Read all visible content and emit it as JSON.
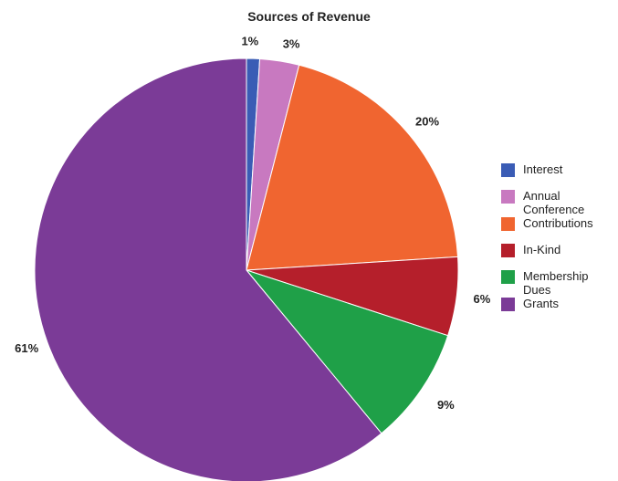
{
  "chart_data": {
    "type": "pie",
    "title": "Sources of Revenue",
    "slices": [
      {
        "name": "Interest",
        "value": 1,
        "label": "1%",
        "color": "#3a5cb5"
      },
      {
        "name": "Annual Conference",
        "value": 3,
        "label": "3%",
        "color": "#c879c0"
      },
      {
        "name": "Contributions",
        "value": 20,
        "label": "20%",
        "color": "#f06530"
      },
      {
        "name": "In-Kind",
        "value": 6,
        "label": "6%",
        "color": "#b51f2b"
      },
      {
        "name": "Membership Dues",
        "value": 9,
        "label": "9%",
        "color": "#1fa048"
      },
      {
        "name": "Grants",
        "value": 61,
        "label": "61%",
        "color": "#7b3b97"
      }
    ],
    "legend_position": "right"
  }
}
